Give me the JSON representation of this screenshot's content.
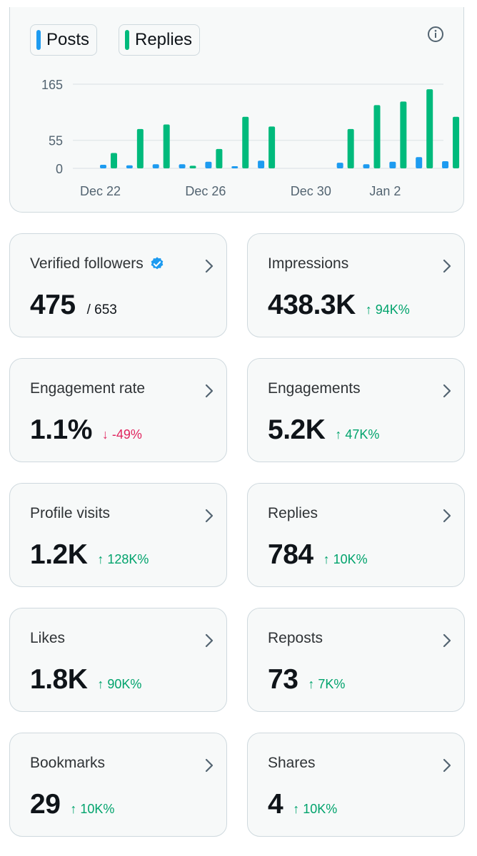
{
  "legend": {
    "posts_label": "Posts",
    "replies_label": "Replies"
  },
  "colors": {
    "posts": "#1d9bf0",
    "replies": "#00ba7c",
    "up": "#00a36c",
    "down": "#e0245e"
  },
  "chart_data": {
    "type": "bar",
    "title": "",
    "xlabel": "",
    "ylabel": "",
    "ylim": [
      0,
      165
    ],
    "yticks": [
      0,
      55,
      165
    ],
    "x_tick_labels": [
      "Dec 22",
      "Dec 26",
      "Dec 30",
      "Jan 2"
    ],
    "x_tick_indices": [
      0,
      4,
      8,
      11
    ],
    "categories": [
      "Dec 22",
      "Dec 23",
      "Dec 24",
      "Dec 25",
      "Dec 26",
      "Dec 27",
      "Dec 28",
      "Dec 29",
      "Dec 30",
      "Dec 31",
      "Jan 1",
      "Jan 2",
      "Jan 3",
      "Jan 4"
    ],
    "series": [
      {
        "name": "Posts",
        "values": [
          7,
          6,
          8,
          8,
          13,
          4,
          15,
          0,
          0,
          11,
          8,
          13,
          22,
          14
        ]
      },
      {
        "name": "Replies",
        "values": [
          30,
          77,
          86,
          5,
          38,
          101,
          82,
          0,
          0,
          77,
          124,
          131,
          155,
          101
        ]
      }
    ]
  },
  "stats": [
    {
      "label": "Verified followers",
      "value": "475",
      "total": "/ 653",
      "change": "",
      "direction": ""
    },
    {
      "label": "Impressions",
      "value": "438.3K",
      "total": "",
      "change": "↑ 94K%",
      "direction": "up"
    },
    {
      "label": "Engagement rate",
      "value": "1.1%",
      "total": "",
      "change": "↓ -49%",
      "direction": "down"
    },
    {
      "label": "Engagements",
      "value": "5.2K",
      "total": "",
      "change": "↑ 47K%",
      "direction": "up"
    },
    {
      "label": "Profile visits",
      "value": "1.2K",
      "total": "",
      "change": "↑ 128K%",
      "direction": "up"
    },
    {
      "label": "Replies",
      "value": "784",
      "total": "",
      "change": "↑ 10K%",
      "direction": "up"
    },
    {
      "label": "Likes",
      "value": "1.8K",
      "total": "",
      "change": "↑ 90K%",
      "direction": "up"
    },
    {
      "label": "Reposts",
      "value": "73",
      "total": "",
      "change": "↑ 7K%",
      "direction": "up"
    },
    {
      "label": "Bookmarks",
      "value": "29",
      "total": "",
      "change": "↑ 10K%",
      "direction": "up"
    },
    {
      "label": "Shares",
      "value": "4",
      "total": "",
      "change": "↑ 10K%",
      "direction": "up"
    }
  ]
}
